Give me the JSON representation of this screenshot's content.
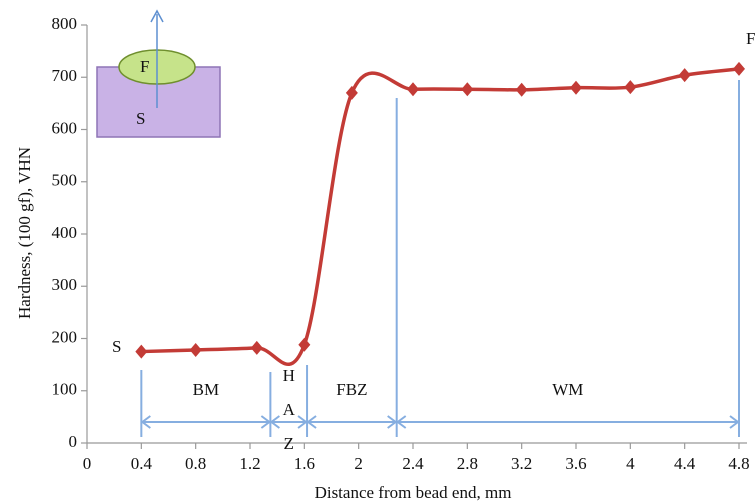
{
  "chart_data": {
    "type": "line",
    "x_label": "Distance from bead end, mm",
    "y_label": "Hardness, (100 gf), VHN",
    "x": [
      0.4,
      0.8,
      1.25,
      1.6,
      1.95,
      2.4,
      2.8,
      3.2,
      3.6,
      4.0,
      4.4,
      4.8
    ],
    "series": [
      {
        "color": "#c33b36",
        "values": [
          175,
          178,
          182,
          188,
          670,
          677,
          677,
          676,
          680,
          681,
          704,
          716
        ]
      }
    ],
    "xlim": [
      0,
      4.8
    ],
    "ylim": [
      0,
      800
    ],
    "xticks": [
      0,
      0.4,
      0.8,
      1.2,
      1.6,
      2,
      2.4,
      2.8,
      3.2,
      3.6,
      4,
      4.4,
      4.8
    ],
    "yticks": [
      0,
      100,
      200,
      300,
      400,
      500,
      600,
      700,
      800
    ],
    "grid": false,
    "start_label": "S",
    "end_label": "F",
    "zone_boundaries": [
      0.4,
      1.35,
      1.62,
      2.28,
      4.8
    ],
    "zones": [
      "BM",
      "HAZ",
      "FBZ",
      "WM"
    ],
    "inset": {
      "top_label": "F",
      "bottom_label": "S"
    }
  }
}
